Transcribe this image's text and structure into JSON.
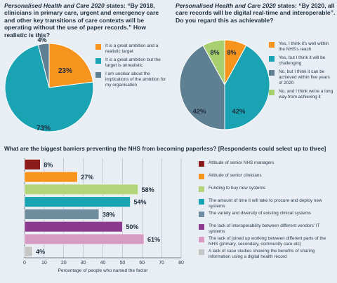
{
  "chart_data": [
    {
      "type": "pie",
      "title_italic": "Personalised Health and Care 2020",
      "title_rest": " states: “By 2018, clinicians in primary care, urgent and emergency care and other key transitions of care contexts will be operating without the use of paper records.” How realistic is this?",
      "slices": [
        {
          "label": "It is a great ambition and a realistic target",
          "value": 23,
          "value_label": "23%",
          "color": "#f7941d"
        },
        {
          "label": "It is a great ambition but the target is unrealistic",
          "value": 73,
          "value_label": "73%",
          "color": "#1aa3b3"
        },
        {
          "label": "I am unclear about the implications of the ambition for my organisation",
          "value": 4,
          "value_label": "4%",
          "color": "#5f7f93"
        }
      ]
    },
    {
      "type": "pie",
      "title_italic": "Personalised Health and Care 2020",
      "title_rest": " states: “By 2020, all care records will be digital real-time and interoperable”. Do you regard this as achievable?",
      "slices": [
        {
          "label": "Yes, I think it's well within the NHS's reach",
          "value": 8,
          "value_label": "8%",
          "color": "#f7941d"
        },
        {
          "label": "Yes, but I think it will be challenging",
          "value": 42,
          "value_label": "42%",
          "color": "#1aa3b3"
        },
        {
          "label": "No, but I think it can be achieved within five years of 2020",
          "value": 42,
          "value_label": "42%",
          "color": "#5f7f93"
        },
        {
          "label": "No, and I think we're a long way from achieving it",
          "value": 8,
          "value_label": "8%",
          "color": "#a8cf6f"
        }
      ]
    },
    {
      "type": "bar",
      "orientation": "horizontal",
      "title": "What are the biggest barriers preventing the NHS from becoming paperless? [Respondents could select up to three]",
      "xlabel": "Percentage of people who named the factor",
      "xlim": [
        0,
        80
      ],
      "xticks": [
        "0",
        "10",
        "20",
        "30",
        "40",
        "50",
        "60",
        "70",
        "80"
      ],
      "categories": [
        "Attitude of senior NHS managers",
        "Attitude of senior clinicians",
        "Funding to buy new systems",
        "The amount of time it will take to procure and deploy new systems",
        "The variety and diversity of existing clinical systems",
        "The lack of interoperability between different vendors' IT systems",
        "The lack of joined up working between different parts of the NHS (primary, secondary, community care etc)",
        "A lack of case studies showing the benefits of sharing information using a digital health record"
      ],
      "values": [
        8,
        27,
        58,
        54,
        38,
        50,
        61,
        4
      ],
      "value_labels": [
        "8%",
        "27%",
        "58%",
        "54%",
        "38%",
        "50%",
        "61%",
        "4%"
      ],
      "colors": [
        "#8b1a1a",
        "#f7941d",
        "#b2d47a",
        "#1aa3b3",
        "#6f8d9e",
        "#8a3b8f",
        "#d79cc3",
        "#c6c6c6"
      ]
    }
  ]
}
